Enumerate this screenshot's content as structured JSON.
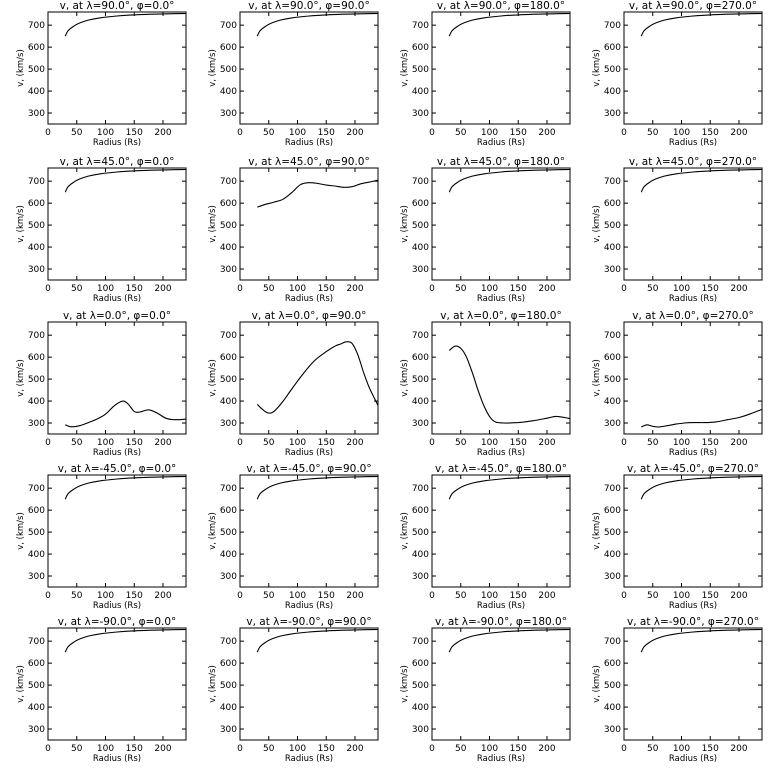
{
  "figure": {
    "background": "#ffffff",
    "line_color": "#000000"
  },
  "chart_data": [
    {
      "type": "line",
      "title": "v, at λ=90.0°, φ=0.0°",
      "xlabel": "Radius (Rs)",
      "ylabel": "v, (km/s)",
      "xlim": [
        0,
        240
      ],
      "ylim": [
        250,
        760
      ],
      "xticks": [
        0,
        50,
        100,
        150,
        200
      ],
      "yticks": [
        300,
        400,
        500,
        600,
        700
      ],
      "x": [
        30,
        35,
        45,
        55,
        70,
        90,
        120,
        150,
        180,
        210,
        240
      ],
      "y": [
        650,
        675,
        696,
        710,
        723,
        733,
        742,
        747,
        750,
        752,
        753
      ]
    },
    {
      "type": "line",
      "title": "v, at λ=90.0°, φ=90.0°",
      "xlabel": "Radius (Rs)",
      "ylabel": "v, (km/s)",
      "xlim": [
        0,
        240
      ],
      "ylim": [
        250,
        760
      ],
      "xticks": [
        0,
        50,
        100,
        150,
        200
      ],
      "yticks": [
        300,
        400,
        500,
        600,
        700
      ],
      "x": [
        30,
        35,
        45,
        55,
        70,
        90,
        120,
        150,
        180,
        210,
        240
      ],
      "y": [
        650,
        675,
        696,
        710,
        723,
        733,
        742,
        747,
        750,
        752,
        753
      ]
    },
    {
      "type": "line",
      "title": "v, at λ=90.0°, φ=180.0°",
      "xlabel": "Radius (Rs)",
      "ylabel": "v, (km/s)",
      "xlim": [
        0,
        240
      ],
      "ylim": [
        250,
        760
      ],
      "xticks": [
        0,
        50,
        100,
        150,
        200
      ],
      "yticks": [
        300,
        400,
        500,
        600,
        700
      ],
      "x": [
        30,
        35,
        45,
        55,
        70,
        90,
        120,
        150,
        180,
        210,
        240
      ],
      "y": [
        650,
        675,
        696,
        710,
        723,
        733,
        742,
        747,
        750,
        752,
        753
      ]
    },
    {
      "type": "line",
      "title": "v, at λ=90.0°, φ=270.0°",
      "xlabel": "Radius (Rs)",
      "ylabel": "v, (km/s)",
      "xlim": [
        0,
        240
      ],
      "ylim": [
        250,
        760
      ],
      "xticks": [
        0,
        50,
        100,
        150,
        200
      ],
      "yticks": [
        300,
        400,
        500,
        600,
        700
      ],
      "x": [
        30,
        35,
        45,
        55,
        70,
        90,
        120,
        150,
        180,
        210,
        240
      ],
      "y": [
        650,
        675,
        696,
        710,
        723,
        733,
        742,
        747,
        750,
        752,
        753
      ]
    },
    {
      "type": "line",
      "title": "v, at λ=45.0°, φ=0.0°",
      "xlabel": "Radius (Rs)",
      "ylabel": "v, (km/s)",
      "xlim": [
        0,
        240
      ],
      "ylim": [
        250,
        760
      ],
      "xticks": [
        0,
        50,
        100,
        150,
        200
      ],
      "yticks": [
        300,
        400,
        500,
        600,
        700
      ],
      "x": [
        30,
        35,
        45,
        55,
        70,
        90,
        120,
        150,
        180,
        210,
        240
      ],
      "y": [
        650,
        675,
        696,
        710,
        723,
        733,
        742,
        747,
        750,
        752,
        753
      ]
    },
    {
      "type": "line",
      "title": "v, at λ=45.0°, φ=90.0°",
      "xlabel": "Radius (Rs)",
      "ylabel": "v, (km/s)",
      "xlim": [
        0,
        240
      ],
      "ylim": [
        250,
        760
      ],
      "xticks": [
        0,
        50,
        100,
        150,
        200
      ],
      "yticks": [
        300,
        400,
        500,
        600,
        700
      ],
      "x": [
        30,
        45,
        60,
        75,
        90,
        105,
        120,
        135,
        150,
        165,
        180,
        195,
        210,
        225,
        240
      ],
      "y": [
        582,
        595,
        605,
        618,
        648,
        684,
        693,
        690,
        682,
        678,
        672,
        675,
        688,
        696,
        705
      ]
    },
    {
      "type": "line",
      "title": "v, at λ=45.0°, φ=180.0°",
      "xlabel": "Radius (Rs)",
      "ylabel": "v, (km/s)",
      "xlim": [
        0,
        240
      ],
      "ylim": [
        250,
        760
      ],
      "xticks": [
        0,
        50,
        100,
        150,
        200
      ],
      "yticks": [
        300,
        400,
        500,
        600,
        700
      ],
      "x": [
        30,
        35,
        45,
        55,
        70,
        90,
        120,
        150,
        180,
        210,
        240
      ],
      "y": [
        650,
        675,
        696,
        710,
        723,
        733,
        742,
        747,
        750,
        752,
        753
      ]
    },
    {
      "type": "line",
      "title": "v, at λ=45.0°, φ=270.0°",
      "xlabel": "Radius (Rs)",
      "ylabel": "v, (km/s)",
      "xlim": [
        0,
        240
      ],
      "ylim": [
        250,
        760
      ],
      "xticks": [
        0,
        50,
        100,
        150,
        200
      ],
      "yticks": [
        300,
        400,
        500,
        600,
        700
      ],
      "x": [
        30,
        35,
        45,
        55,
        70,
        90,
        120,
        150,
        180,
        210,
        240
      ],
      "y": [
        650,
        675,
        696,
        710,
        723,
        733,
        742,
        747,
        750,
        752,
        753
      ]
    },
    {
      "type": "line",
      "title": "v, at λ=0.0°, φ=0.0°",
      "xlabel": "Radius (Rs)",
      "ylabel": "v, (km/s)",
      "xlim": [
        0,
        240
      ],
      "ylim": [
        250,
        760
      ],
      "xticks": [
        0,
        50,
        100,
        150,
        200
      ],
      "yticks": [
        300,
        400,
        500,
        600,
        700
      ],
      "x": [
        30,
        40,
        55,
        70,
        85,
        100,
        115,
        130,
        140,
        150,
        160,
        175,
        190,
        205,
        220,
        240
      ],
      "y": [
        292,
        283,
        288,
        302,
        318,
        340,
        378,
        400,
        385,
        352,
        350,
        360,
        345,
        322,
        315,
        318
      ]
    },
    {
      "type": "line",
      "title": "v, at λ=0.0°, φ=90.0°",
      "xlabel": "Radius (Rs)",
      "ylabel": "v, (km/s)",
      "xlim": [
        0,
        240
      ],
      "ylim": [
        250,
        760
      ],
      "xticks": [
        0,
        50,
        100,
        150,
        200
      ],
      "yticks": [
        300,
        400,
        500,
        600,
        700
      ],
      "x": [
        30,
        40,
        50,
        60,
        75,
        90,
        110,
        130,
        150,
        165,
        175,
        185,
        195,
        205,
        215,
        225,
        240
      ],
      "y": [
        385,
        360,
        345,
        355,
        400,
        455,
        525,
        585,
        625,
        650,
        660,
        670,
        662,
        610,
        530,
        460,
        380
      ]
    },
    {
      "type": "line",
      "title": "v, at λ=0.0°, φ=180.0°",
      "xlabel": "Radius (Rs)",
      "ylabel": "v, (km/s)",
      "xlim": [
        0,
        240
      ],
      "ylim": [
        250,
        760
      ],
      "xticks": [
        0,
        50,
        100,
        150,
        200
      ],
      "yticks": [
        300,
        400,
        500,
        600,
        700
      ],
      "x": [
        30,
        40,
        50,
        60,
        70,
        80,
        90,
        100,
        110,
        125,
        150,
        175,
        200,
        215,
        230,
        240
      ],
      "y": [
        630,
        650,
        640,
        600,
        530,
        450,
        380,
        330,
        305,
        300,
        302,
        310,
        322,
        330,
        325,
        320
      ]
    },
    {
      "type": "line",
      "title": "v, at λ=0.0°, φ=270.0°",
      "xlabel": "Radius (Rs)",
      "ylabel": "v, (km/s)",
      "xlim": [
        0,
        240
      ],
      "ylim": [
        250,
        760
      ],
      "xticks": [
        0,
        50,
        100,
        150,
        200
      ],
      "yticks": [
        300,
        400,
        500,
        600,
        700
      ],
      "x": [
        30,
        40,
        50,
        60,
        75,
        90,
        105,
        120,
        140,
        160,
        180,
        200,
        220,
        240
      ],
      "y": [
        282,
        292,
        285,
        282,
        288,
        295,
        300,
        302,
        302,
        305,
        315,
        325,
        342,
        362
      ]
    },
    {
      "type": "line",
      "title": "v, at λ=-45.0°, φ=0.0°",
      "xlabel": "Radius (Rs)",
      "ylabel": "v, (km/s)",
      "xlim": [
        0,
        240
      ],
      "ylim": [
        250,
        760
      ],
      "xticks": [
        0,
        50,
        100,
        150,
        200
      ],
      "yticks": [
        300,
        400,
        500,
        600,
        700
      ],
      "x": [
        30,
        35,
        45,
        55,
        70,
        90,
        120,
        150,
        180,
        210,
        240
      ],
      "y": [
        650,
        675,
        696,
        710,
        723,
        733,
        742,
        747,
        750,
        752,
        753
      ]
    },
    {
      "type": "line",
      "title": "v, at λ=-45.0°, φ=90.0°",
      "xlabel": "Radius (Rs)",
      "ylabel": "v, (km/s)",
      "xlim": [
        0,
        240
      ],
      "ylim": [
        250,
        760
      ],
      "xticks": [
        0,
        50,
        100,
        150,
        200
      ],
      "yticks": [
        300,
        400,
        500,
        600,
        700
      ],
      "x": [
        30,
        35,
        45,
        55,
        70,
        90,
        120,
        150,
        180,
        210,
        240
      ],
      "y": [
        650,
        675,
        696,
        710,
        723,
        733,
        742,
        747,
        750,
        752,
        753
      ]
    },
    {
      "type": "line",
      "title": "v, at λ=-45.0°, φ=180.0°",
      "xlabel": "Radius (Rs)",
      "ylabel": "v, (km/s)",
      "xlim": [
        0,
        240
      ],
      "ylim": [
        250,
        760
      ],
      "xticks": [
        0,
        50,
        100,
        150,
        200
      ],
      "yticks": [
        300,
        400,
        500,
        600,
        700
      ],
      "x": [
        30,
        35,
        45,
        55,
        70,
        90,
        120,
        150,
        180,
        210,
        240
      ],
      "y": [
        650,
        675,
        696,
        710,
        723,
        733,
        742,
        747,
        750,
        752,
        753
      ]
    },
    {
      "type": "line",
      "title": "v, at λ=-45.0°, φ=270.0°",
      "xlabel": "Radius (Rs)",
      "ylabel": "v, (km/s)",
      "xlim": [
        0,
        240
      ],
      "ylim": [
        250,
        760
      ],
      "xticks": [
        0,
        50,
        100,
        150,
        200
      ],
      "yticks": [
        300,
        400,
        500,
        600,
        700
      ],
      "x": [
        30,
        35,
        45,
        55,
        70,
        90,
        120,
        150,
        180,
        210,
        240
      ],
      "y": [
        650,
        675,
        696,
        710,
        723,
        733,
        742,
        747,
        750,
        752,
        753
      ]
    },
    {
      "type": "line",
      "title": "v, at λ=-90.0°, φ=0.0°",
      "xlabel": "Radius (Rs)",
      "ylabel": "v, (km/s)",
      "xlim": [
        0,
        240
      ],
      "ylim": [
        250,
        760
      ],
      "xticks": [
        0,
        50,
        100,
        150,
        200
      ],
      "yticks": [
        300,
        400,
        500,
        600,
        700
      ],
      "x": [
        30,
        35,
        45,
        55,
        70,
        90,
        120,
        150,
        180,
        210,
        240
      ],
      "y": [
        650,
        675,
        696,
        710,
        723,
        733,
        742,
        747,
        750,
        752,
        753
      ]
    },
    {
      "type": "line",
      "title": "v, at λ=-90.0°, φ=90.0°",
      "xlabel": "Radius (Rs)",
      "ylabel": "v, (km/s)",
      "xlim": [
        0,
        240
      ],
      "ylim": [
        250,
        760
      ],
      "xticks": [
        0,
        50,
        100,
        150,
        200
      ],
      "yticks": [
        300,
        400,
        500,
        600,
        700
      ],
      "x": [
        30,
        35,
        45,
        55,
        70,
        90,
        120,
        150,
        180,
        210,
        240
      ],
      "y": [
        650,
        675,
        696,
        710,
        723,
        733,
        742,
        747,
        750,
        752,
        753
      ]
    },
    {
      "type": "line",
      "title": "v, at λ=-90.0°, φ=180.0°",
      "xlabel": "Radius (Rs)",
      "ylabel": "v, (km/s)",
      "xlim": [
        0,
        240
      ],
      "ylim": [
        250,
        760
      ],
      "xticks": [
        0,
        50,
        100,
        150,
        200
      ],
      "yticks": [
        300,
        400,
        500,
        600,
        700
      ],
      "x": [
        30,
        35,
        45,
        55,
        70,
        90,
        120,
        150,
        180,
        210,
        240
      ],
      "y": [
        650,
        675,
        696,
        710,
        723,
        733,
        742,
        747,
        750,
        752,
        753
      ]
    },
    {
      "type": "line",
      "title": "v, at λ=-90.0°, φ=270.0°",
      "xlabel": "Radius (Rs)",
      "ylabel": "v, (km/s)",
      "xlim": [
        0,
        240
      ],
      "ylim": [
        250,
        760
      ],
      "xticks": [
        0,
        50,
        100,
        150,
        200
      ],
      "yticks": [
        300,
        400,
        500,
        600,
        700
      ],
      "x": [
        30,
        35,
        45,
        55,
        70,
        90,
        120,
        150,
        180,
        210,
        240
      ],
      "y": [
        650,
        675,
        696,
        710,
        723,
        733,
        742,
        747,
        750,
        752,
        753
      ]
    }
  ]
}
